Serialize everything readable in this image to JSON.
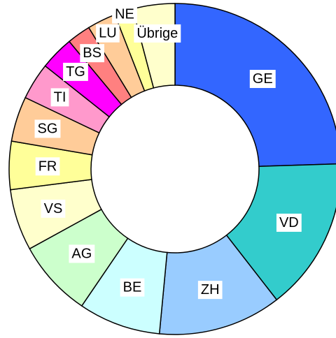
{
  "chart_data": {
    "type": "donut",
    "categories": [
      "GE",
      "VD",
      "ZH",
      "BE",
      "AG",
      "VS",
      "FR",
      "SG",
      "TI",
      "TG",
      "BS",
      "LU",
      "NE",
      "Übrige"
    ],
    "values": [
      24.5,
      15,
      12,
      8,
      7.5,
      6,
      4.7,
      4.4,
      3.6,
      3.3,
      2.3,
      2.8,
      1.8,
      4.1
    ],
    "colors": [
      "#3366ff",
      "#33cccc",
      "#99ccff",
      "#ccffff",
      "#ccffcc",
      "#ffffcc",
      "#ffff99",
      "#ffcc99",
      "#ff99cc",
      "#ff00ff",
      "#ff8080",
      "#ffcc99",
      "#ffff99",
      "#ffffcc"
    ]
  }
}
